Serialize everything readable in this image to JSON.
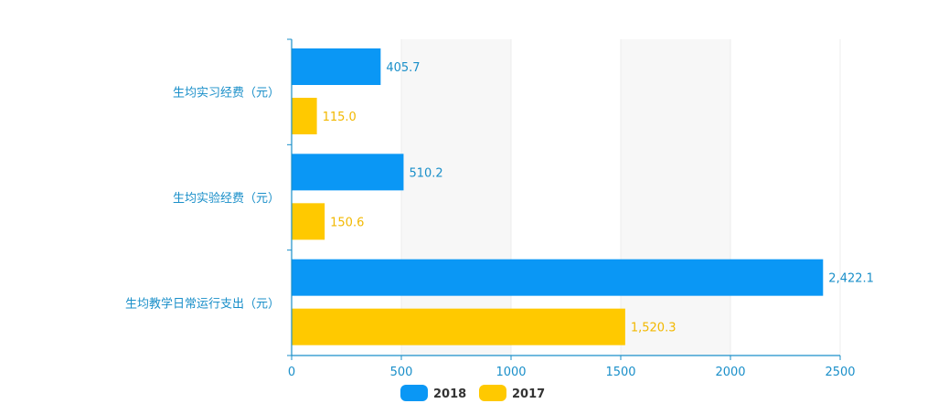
{
  "chart_data": {
    "type": "bar",
    "orientation": "horizontal",
    "categories": [
      "生均实习经费（元）",
      "生均实验经费（元）",
      "生均教学日常运行支出（元）"
    ],
    "series": [
      {
        "name": "2018",
        "color": "#0a97f5",
        "values": [
          405.7,
          510.2,
          2422.1
        ],
        "labels": [
          "405.7",
          "510.2",
          "2,422.1"
        ]
      },
      {
        "name": "2017",
        "color": "#ffc900",
        "values": [
          115.0,
          150.6,
          1520.3
        ],
        "labels": [
          "115.0",
          "150.6",
          "1,520.3"
        ]
      }
    ],
    "xlim": [
      0,
      2500
    ],
    "xticks": [
      0,
      500,
      1000,
      1500,
      2000,
      2500
    ],
    "grid": "alternating vertical bands",
    "legend_position": "bottom-center",
    "axis_color": "#1a8fc9"
  }
}
